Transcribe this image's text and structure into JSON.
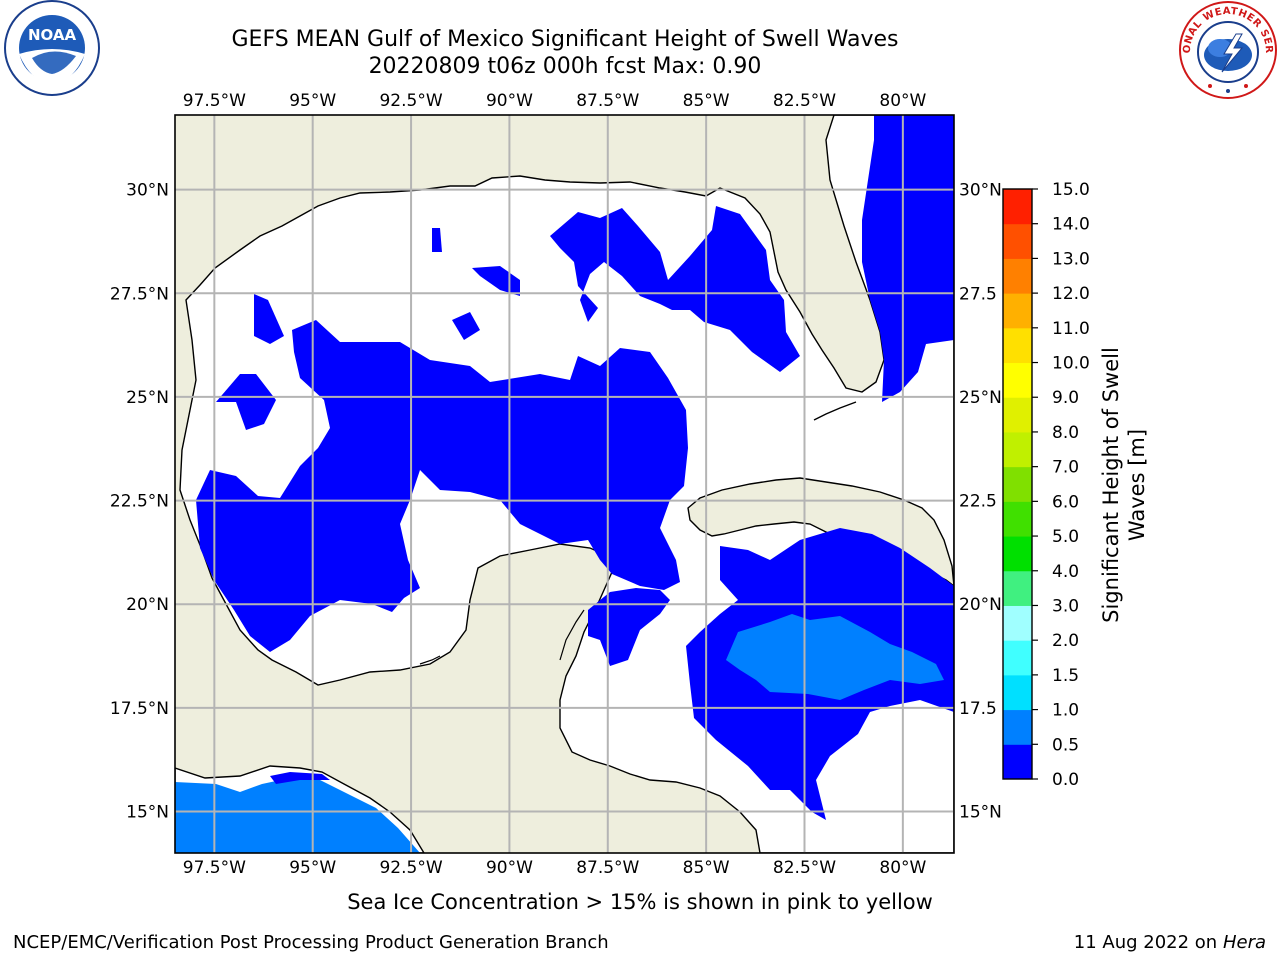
{
  "title": {
    "line1": "GEFS MEAN Gulf of Mexico Significant Height of Swell Waves",
    "line2": "20220809 t06z 000h fcst   Max: 0.90"
  },
  "logos": {
    "left": {
      "name": "noaa-logo",
      "text": "NOAA"
    },
    "right": {
      "name": "national-weather-service-logo",
      "text": "NATIONAL WEATHER SERVICE"
    }
  },
  "map": {
    "lon_range": [
      -98.5,
      -78.7
    ],
    "lat_range": [
      14.0,
      31.8
    ],
    "lon_ticks": [
      {
        "value": -97.5,
        "label": "97.5°W"
      },
      {
        "value": -95.0,
        "label": "95°W"
      },
      {
        "value": -92.5,
        "label": "92.5°W"
      },
      {
        "value": -90.0,
        "label": "90°W"
      },
      {
        "value": -87.5,
        "label": "87.5°W"
      },
      {
        "value": -85.0,
        "label": "85°W"
      },
      {
        "value": -82.5,
        "label": "82.5°W"
      },
      {
        "value": -80.0,
        "label": "80°W"
      }
    ],
    "lat_ticks": [
      {
        "value": 30.0,
        "label": "30°N"
      },
      {
        "value": 27.5,
        "label": "27.5°N"
      },
      {
        "value": 25.0,
        "label": "25°N"
      },
      {
        "value": 22.5,
        "label": "22.5°N"
      },
      {
        "value": 20.0,
        "label": "20°N"
      },
      {
        "value": 17.5,
        "label": "17.5°N"
      },
      {
        "value": 15.0,
        "label": "15°N"
      }
    ],
    "right_lat_labels": [
      "30°N",
      "27.5",
      "25°N",
      "22.5",
      "20°N",
      "17.5",
      "15°N"
    ],
    "colors": {
      "land": "#eeeedd",
      "ocean": "#ffffff",
      "grid": "#b4b4b4",
      "coast": "#000000"
    },
    "max_value": 0.9
  },
  "colorbar": {
    "label": "Significant Height of Swell Waves [m]",
    "label_line1": "Significant Height of Swell",
    "label_line2": "Waves [m]",
    "levels": [
      0.0,
      0.5,
      1.0,
      1.5,
      2.0,
      3.0,
      4.0,
      5.0,
      6.0,
      7.0,
      8.0,
      9.0,
      10.0,
      11.0,
      12.0,
      13.0,
      14.0,
      15.0
    ],
    "tick_labels": [
      "0.0",
      "0.5",
      "1.0",
      "1.5",
      "2.0",
      "3.0",
      "4.0",
      "5.0",
      "6.0",
      "7.0",
      "8.0",
      "9.0",
      "10.0",
      "11.0",
      "12.0",
      "13.0",
      "14.0",
      "15.0"
    ],
    "colors": [
      "#0000ff",
      "#0080ff",
      "#00e0ff",
      "#40ffff",
      "#a0ffff",
      "#40f080",
      "#00e000",
      "#40e000",
      "#80e000",
      "#c0f000",
      "#e0f000",
      "#ffff00",
      "#ffe000",
      "#ffb000",
      "#ff8000",
      "#ff5000",
      "#ff2000"
    ]
  },
  "note": "Sea Ice Concentration > 15% is shown in pink to yellow",
  "footer": {
    "left": "NCEP/EMC/Verification Post Processing Product Generation Branch",
    "right_date": "11 Aug 2022 on",
    "right_host": "Hera"
  }
}
